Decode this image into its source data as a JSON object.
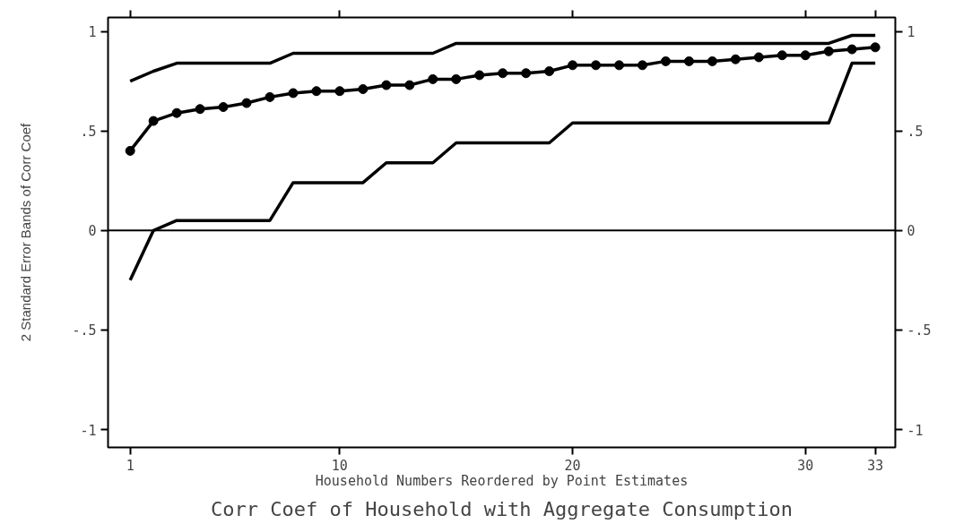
{
  "chart_data": {
    "type": "line",
    "title": "Corr Coef of Household with Aggregate Consumption",
    "xlabel": "Household Numbers Reordered by Point Estimates",
    "ylabel": "2 Standard Error Bands of Corr Coef",
    "x": [
      1,
      2,
      3,
      4,
      5,
      6,
      7,
      8,
      9,
      10,
      11,
      12,
      13,
      14,
      15,
      16,
      17,
      18,
      19,
      20,
      21,
      22,
      23,
      24,
      25,
      26,
      27,
      28,
      29,
      30,
      31,
      32,
      33
    ],
    "series": [
      {
        "color": "#000000",
        "marker": "circle",
        "values": [
          0.4,
          0.55,
          0.59,
          0.61,
          0.62,
          0.64,
          0.67,
          0.69,
          0.7,
          0.7,
          0.71,
          0.73,
          0.73,
          0.76,
          0.76,
          0.78,
          0.79,
          0.79,
          0.8,
          0.83,
          0.83,
          0.83,
          0.83,
          0.85,
          0.85,
          0.85,
          0.86,
          0.87,
          0.88,
          0.88,
          0.9,
          0.91,
          0.92
        ]
      },
      {
        "color": "#000000",
        "marker": "none",
        "values": [
          0.75,
          0.8,
          0.84,
          0.84,
          0.84,
          0.84,
          0.84,
          0.89,
          0.89,
          0.89,
          0.89,
          0.89,
          0.89,
          0.89,
          0.94,
          0.94,
          0.94,
          0.94,
          0.94,
          0.94,
          0.94,
          0.94,
          0.94,
          0.94,
          0.94,
          0.94,
          0.94,
          0.94,
          0.94,
          0.94,
          0.94,
          0.98,
          0.98
        ]
      },
      {
        "color": "#000000",
        "marker": "none",
        "values": [
          -0.25,
          0.0,
          0.05,
          0.05,
          0.05,
          0.05,
          0.05,
          0.24,
          0.24,
          0.24,
          0.24,
          0.34,
          0.34,
          0.34,
          0.44,
          0.44,
          0.44,
          0.44,
          0.44,
          0.54,
          0.54,
          0.54,
          0.54,
          0.54,
          0.54,
          0.54,
          0.54,
          0.54,
          0.54,
          0.54,
          0.54,
          0.84,
          0.84
        ]
      }
    ],
    "ref_lines": [
      {
        "axis": "y",
        "value": 0,
        "color": "#000000"
      }
    ],
    "xlim": [
      0.05,
      33.86
    ],
    "xticks": [
      1,
      10,
      20,
      30,
      33
    ],
    "ylim": [
      -1.09,
      1.07
    ],
    "yticks": [
      -1,
      {
        "value": -0.5,
        "label": "-.5"
      },
      0,
      {
        "value": 0.5,
        "label": ".5"
      },
      1
    ],
    "y2lim": [
      -1.09,
      1.07
    ],
    "y2ticks": [
      -1,
      {
        "value": -0.5,
        "label": "-.5"
      },
      0,
      {
        "value": 0.5,
        "label": ".5"
      },
      1
    ],
    "grid": false,
    "line_style": "solid"
  }
}
